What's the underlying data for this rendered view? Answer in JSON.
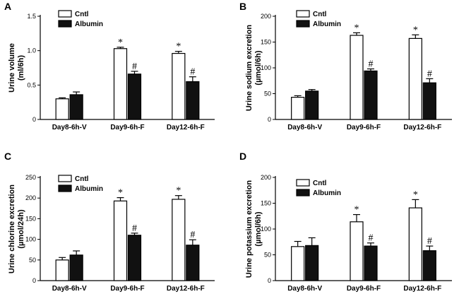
{
  "colors": {
    "cntl_fill": "#ffffff",
    "albumin_fill": "#111111",
    "stroke": "#000000"
  },
  "chart_data": [
    {
      "panel": "A",
      "type": "bar",
      "ylabel_lines": [
        "Urine volume",
        "(ml/6h)"
      ],
      "categories": [
        "Day8-6h-V",
        "Day9-6h-F",
        "Day12-6h-F"
      ],
      "ylim": [
        0,
        1.5
      ],
      "yticks": [
        0,
        0.5,
        1.0,
        1.5
      ],
      "ytick_labels": [
        "0",
        "0.5",
        "1.0",
        "1.5"
      ],
      "legend": [
        "Cntl",
        "Albumin"
      ],
      "series": [
        {
          "name": "Cntl",
          "values": [
            0.3,
            1.03,
            0.96
          ],
          "errors": [
            0.015,
            0.02,
            0.03
          ],
          "marks": [
            "",
            "*",
            "*"
          ]
        },
        {
          "name": "Albumin",
          "values": [
            0.36,
            0.66,
            0.55
          ],
          "errors": [
            0.04,
            0.04,
            0.07
          ],
          "marks": [
            "",
            "#",
            "#"
          ]
        }
      ]
    },
    {
      "panel": "B",
      "type": "bar",
      "ylabel_lines": [
        "Urine sodium excretion",
        "(µmol/6h)"
      ],
      "categories": [
        "Day8-6h-V",
        "Day9-6h-F",
        "Day12-6h-F"
      ],
      "ylim": [
        0,
        200
      ],
      "yticks": [
        0,
        50,
        100,
        150,
        200
      ],
      "ytick_labels": [
        "0",
        "50",
        "100",
        "150",
        "200"
      ],
      "legend": [
        "Cntl",
        "Albumin"
      ],
      "series": [
        {
          "name": "Cntl",
          "values": [
            43,
            163,
            157
          ],
          "errors": [
            3,
            5,
            7
          ],
          "marks": [
            "",
            "*",
            "*"
          ]
        },
        {
          "name": "Albumin",
          "values": [
            55,
            94,
            71
          ],
          "errors": [
            3,
            4,
            8
          ],
          "marks": [
            "",
            "#",
            "#"
          ]
        }
      ]
    },
    {
      "panel": "C",
      "type": "bar",
      "ylabel_lines": [
        "Urine chlorine excretion",
        "(µmol/24h)"
      ],
      "categories": [
        "Day8-6h-V",
        "Day9-6h-F",
        "Day12-6h-F"
      ],
      "ylim": [
        0,
        250
      ],
      "yticks": [
        0,
        50,
        100,
        150,
        200,
        250
      ],
      "ytick_labels": [
        "0",
        "50",
        "100",
        "150",
        "200",
        "250"
      ],
      "legend": [
        "Cntl",
        "Albumin"
      ],
      "series": [
        {
          "name": "Cntl",
          "values": [
            50,
            193,
            197
          ],
          "errors": [
            6,
            8,
            9
          ],
          "marks": [
            "",
            "*",
            "*"
          ]
        },
        {
          "name": "Albumin",
          "values": [
            62,
            110,
            86
          ],
          "errors": [
            10,
            5,
            13
          ],
          "marks": [
            "",
            "#",
            "#"
          ]
        }
      ]
    },
    {
      "panel": "D",
      "type": "bar",
      "ylabel_lines": [
        "Urine potassium excretion",
        "(µmol/6h)"
      ],
      "categories": [
        "Day8-6h-V",
        "Day9-6h-F",
        "Day12-6h-F"
      ],
      "ylim": [
        0,
        200
      ],
      "yticks": [
        0,
        50,
        100,
        150,
        200
      ],
      "ytick_labels": [
        "0",
        "50",
        "100",
        "150",
        "200"
      ],
      "legend": [
        "Cntl",
        "Albumin"
      ],
      "series": [
        {
          "name": "Cntl",
          "values": [
            66,
            114,
            141
          ],
          "errors": [
            10,
            14,
            16
          ],
          "marks": [
            "",
            "*",
            "*"
          ]
        },
        {
          "name": "Albumin",
          "values": [
            68,
            67,
            58
          ],
          "errors": [
            15,
            6,
            9
          ],
          "marks": [
            "",
            "#",
            "#"
          ]
        }
      ]
    }
  ]
}
